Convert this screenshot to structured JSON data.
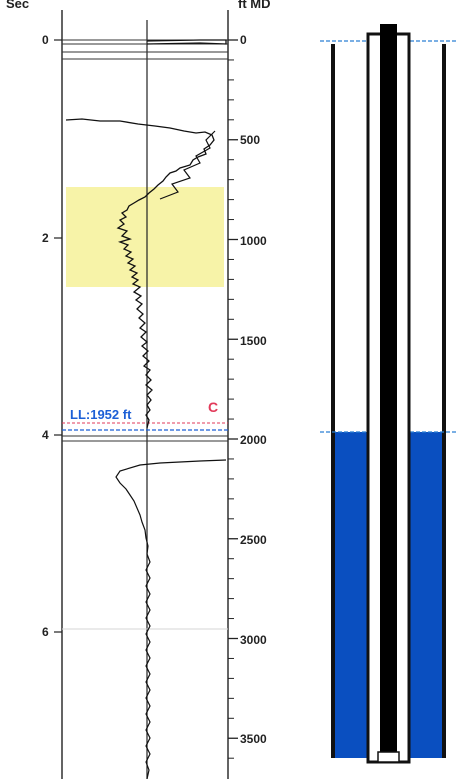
{
  "headers": {
    "left": "Sec",
    "right": "ft MD"
  },
  "time_track": {
    "tick_labels": [
      "0",
      "2",
      "4",
      "6"
    ]
  },
  "depth_track": {
    "tick_labels": [
      "0",
      "500",
      "1000",
      "1500",
      "2000",
      "2500",
      "3000",
      "3500"
    ]
  },
  "markers": {
    "liquid_level_label": "LL:1952 ft",
    "collar_label": "C"
  },
  "colors": {
    "liquid_blue": "#0a4fc0",
    "highlight_yellow": "#f7f3a8",
    "collar_red": "#e23a5a",
    "label_blue": "#1c5fd6",
    "trace_black": "#111111"
  }
}
